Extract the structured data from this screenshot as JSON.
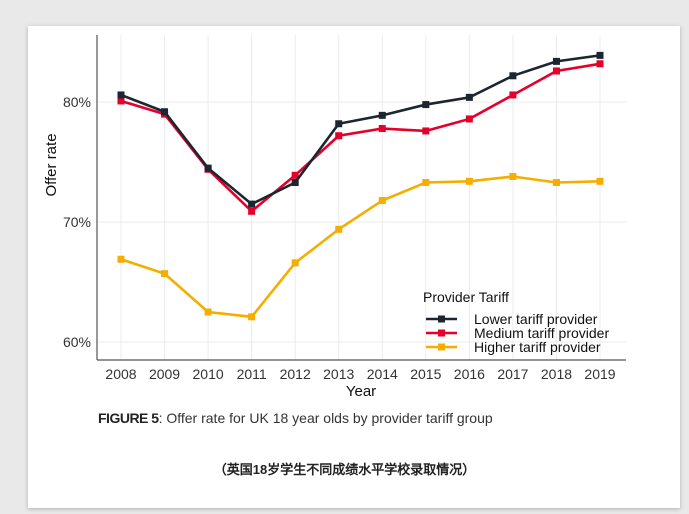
{
  "chart_data": {
    "type": "line",
    "title": "",
    "xlabel": "Year",
    "ylabel": "Offer rate",
    "x": [
      2008,
      2009,
      2010,
      2011,
      2012,
      2013,
      2014,
      2015,
      2016,
      2017,
      2018,
      2019
    ],
    "x_tick_labels": [
      "2008",
      "2009",
      "2010",
      "2011",
      "2012",
      "2013",
      "2014",
      "2015",
      "2016",
      "2017",
      "2018",
      "2019"
    ],
    "ylim": [
      58.5,
      85.6
    ],
    "y_ticks": [
      60,
      70,
      80
    ],
    "y_tick_labels": [
      "60%",
      "70%",
      "80%"
    ],
    "grid": true,
    "legend": {
      "title": "Provider Tariff",
      "placement": "bottom-right"
    },
    "series": [
      {
        "name": "Lower tariff provider",
        "color": "#1c2530",
        "values": [
          80.6,
          79.2,
          74.5,
          71.5,
          73.3,
          78.2,
          78.9,
          79.8,
          80.4,
          82.2,
          83.4,
          83.9
        ]
      },
      {
        "name": "Medium tariff provider",
        "color": "#e4002b",
        "values": [
          80.1,
          79.0,
          74.4,
          70.9,
          73.9,
          77.2,
          77.8,
          77.6,
          78.6,
          80.6,
          82.6,
          83.2
        ]
      },
      {
        "name": "Higher tariff provider",
        "color": "#f5ad00",
        "values": [
          66.9,
          65.7,
          62.5,
          62.1,
          66.6,
          69.4,
          71.8,
          73.3,
          73.4,
          73.8,
          73.3,
          73.4
        ]
      }
    ]
  },
  "caption": {
    "label": "FIGURE 5",
    "text": ": Offer rate for UK 18 year olds by provider tariff group"
  },
  "subtitle_cn": "（英国18岁学生不同成绩水平学校录取情况）"
}
